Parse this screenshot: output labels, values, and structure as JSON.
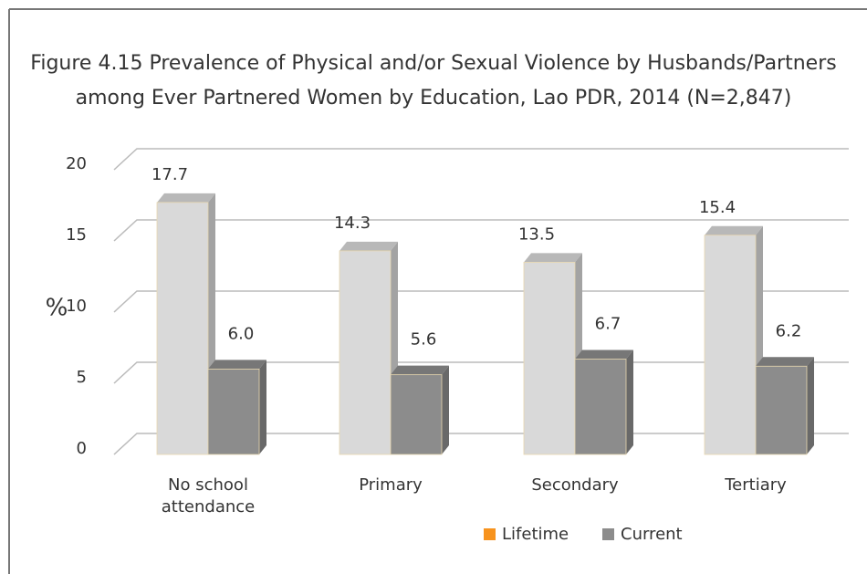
{
  "chart_data": {
    "type": "bar3d",
    "title": [
      "Figure 4.15 Prevalence of Physical and/or Sexual Violence by Husbands/Partners",
      "among Ever Partnered Women by Education, Lao PDR, 2014 (N=2,847)"
    ],
    "ylabel": "%",
    "categories": [
      "No school attendance",
      "Primary",
      "Secondary",
      "Tertiary"
    ],
    "series": [
      {
        "name": "Lifetime",
        "color": "#d9d9d9",
        "legend_color": "#f7931e",
        "values": [
          17.7,
          14.3,
          13.5,
          15.4
        ]
      },
      {
        "name": "Current",
        "color": "#8c8c8c",
        "legend_color": "#8c8c8c",
        "values": [
          6.0,
          5.6,
          6.7,
          6.2
        ],
        "value_labels": [
          "6.0",
          "5.6",
          "6.7",
          "6.2"
        ]
      }
    ],
    "ylim": [
      0,
      20
    ],
    "yticks": [
      0,
      5,
      10,
      15,
      20
    ],
    "grid": true
  }
}
